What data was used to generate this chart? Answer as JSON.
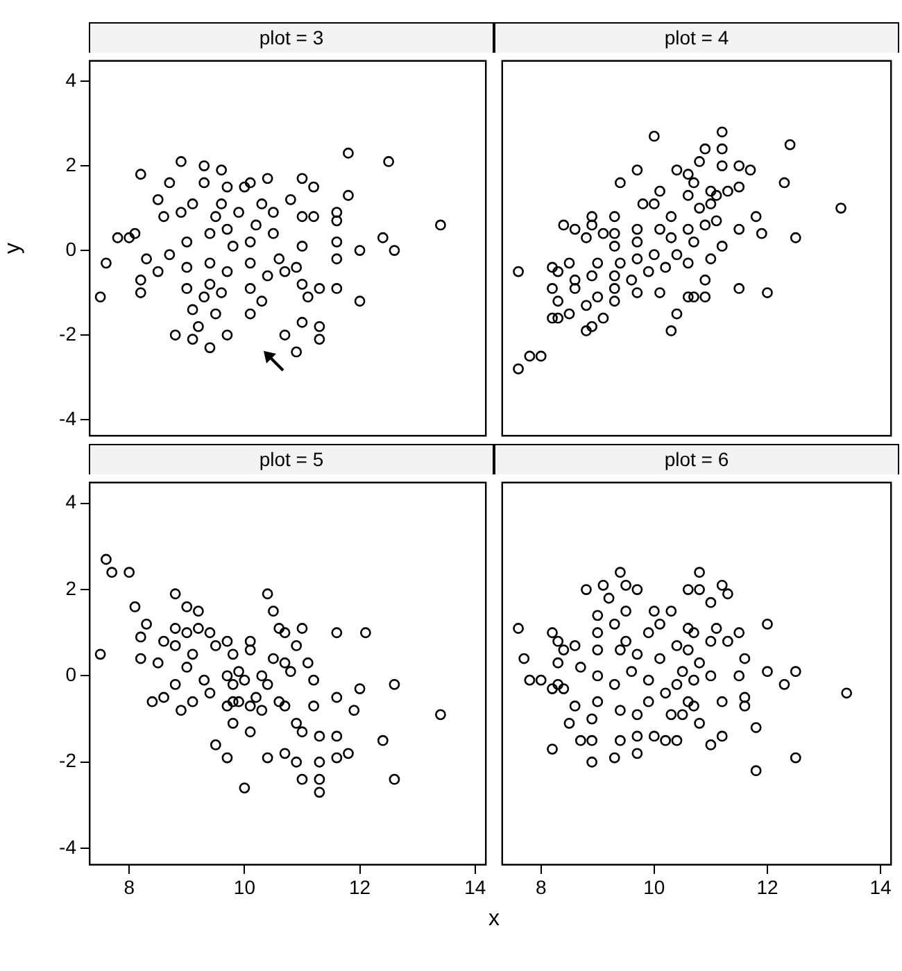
{
  "chart_data": [
    {
      "type": "scatter",
      "title": "plot = 3",
      "ylabel": "y",
      "color": "#000000",
      "marker": "circle",
      "xlim": [
        7.3,
        14.2
      ],
      "ylim": [
        -4.4,
        4.5
      ],
      "xticks": [
        8,
        10,
        12,
        14
      ],
      "yticks": [
        -4,
        -2,
        0,
        2,
        4
      ],
      "tick_labels": "y",
      "x": [
        7.5,
        7.6,
        7.8,
        8.0,
        8.1,
        8.2,
        8.2,
        8.3,
        8.2,
        8.5,
        8.6,
        8.7,
        8.9,
        8.8,
        9.1,
        9.2,
        9.4,
        9.7,
        9.3,
        9.6,
        9.3,
        9.7,
        8.5,
        8.7,
        9.0,
        9.0,
        9.0,
        8.9,
        9.1,
        9.1,
        9.3,
        9.5,
        9.4,
        9.4,
        9.4,
        9.5,
        9.6,
        9.6,
        9.7,
        9.8,
        9.7,
        9.9,
        10.0,
        10.1,
        10.3,
        10.1,
        10.1,
        10.1,
        10.2,
        10.3,
        10.4,
        10.1,
        10.4,
        10.6,
        10.5,
        10.5,
        10.7,
        10.9,
        11.0,
        11.3,
        11.3,
        11.1,
        11.0,
        11.3,
        10.7,
        10.9,
        11.0,
        11.2,
        11.0,
        10.8,
        11.0,
        11.2,
        11.6,
        11.6,
        11.6,
        11.6,
        11.6,
        11.8,
        11.8,
        12.0,
        12.0,
        12.4,
        12.6,
        12.5,
        13.4
      ],
      "values": [
        -1.1,
        -0.3,
        0.3,
        0.3,
        0.4,
        -1.0,
        -0.7,
        -0.2,
        1.8,
        1.2,
        0.8,
        1.6,
        2.1,
        -2.0,
        -2.1,
        -1.8,
        -2.3,
        -2.0,
        2.0,
        1.9,
        1.6,
        1.5,
        -0.5,
        -0.1,
        -0.9,
        -0.4,
        0.2,
        0.9,
        1.1,
        -1.4,
        -1.1,
        -1.5,
        -0.8,
        -0.3,
        0.4,
        0.8,
        1.1,
        -1.0,
        -0.5,
        0.1,
        0.5,
        0.9,
        1.5,
        -1.5,
        -1.2,
        -0.9,
        -0.3,
        0.2,
        0.6,
        1.1,
        1.7,
        1.6,
        -0.6,
        -0.2,
        0.4,
        0.9,
        -2.0,
        -2.4,
        -1.7,
        -2.1,
        -1.8,
        -1.1,
        -0.8,
        -0.9,
        -0.5,
        -0.4,
        0.1,
        0.8,
        0.8,
        1.2,
        1.7,
        1.5,
        -0.9,
        -0.2,
        0.2,
        0.7,
        0.9,
        1.3,
        2.3,
        -1.2,
        0.0,
        0.3,
        0.0,
        2.1,
        0.6
      ]
    },
    {
      "type": "scatter",
      "title": "plot = 4",
      "color": "#000000",
      "marker": "circle",
      "xlim": [
        7.3,
        14.2
      ],
      "ylim": [
        -4.4,
        4.5
      ],
      "xticks": [
        8,
        10,
        12,
        14
      ],
      "yticks": [
        -4,
        -2,
        0,
        2,
        4
      ],
      "tick_labels": false,
      "x": [
        7.6,
        7.8,
        8.0,
        7.6,
        8.2,
        8.3,
        8.3,
        8.2,
        8.2,
        8.3,
        8.5,
        8.5,
        8.6,
        8.6,
        8.4,
        8.6,
        8.8,
        8.9,
        9.1,
        8.8,
        9.0,
        8.9,
        9.0,
        8.8,
        8.9,
        8.9,
        9.1,
        9.3,
        9.3,
        9.3,
        9.4,
        9.3,
        9.3,
        9.3,
        9.4,
        9.7,
        10.0,
        9.7,
        9.6,
        9.7,
        9.7,
        9.7,
        9.8,
        10.1,
        9.9,
        10.0,
        10.1,
        10.0,
        10.1,
        10.3,
        10.4,
        10.6,
        10.2,
        10.4,
        10.3,
        10.3,
        10.4,
        10.7,
        10.9,
        10.9,
        10.6,
        11.0,
        10.7,
        10.6,
        10.9,
        10.6,
        10.7,
        10.6,
        10.8,
        10.9,
        10.8,
        11.0,
        11.0,
        11.2,
        11.1,
        11.1,
        11.3,
        11.2,
        11.2,
        11.2,
        11.5,
        11.5,
        11.5,
        11.5,
        11.7,
        11.8,
        12.0,
        11.9,
        12.3,
        12.4,
        12.5,
        13.3
      ],
      "values": [
        -2.8,
        -2.5,
        -2.5,
        -0.5,
        -1.6,
        -1.6,
        -1.2,
        -0.9,
        -0.4,
        -0.5,
        -0.3,
        -1.5,
        -0.9,
        -0.7,
        0.6,
        0.5,
        -1.9,
        -1.8,
        -1.6,
        -1.3,
        -1.1,
        -0.6,
        -0.3,
        0.3,
        0.6,
        0.8,
        0.4,
        -1.2,
        -0.9,
        -0.6,
        -0.3,
        0.1,
        0.4,
        0.8,
        1.6,
        1.9,
        2.7,
        -1.0,
        -0.7,
        -0.2,
        0.2,
        0.5,
        1.1,
        -1.0,
        -0.5,
        -0.1,
        0.5,
        1.1,
        1.4,
        -1.9,
        -1.5,
        -1.1,
        -0.4,
        -0.1,
        0.3,
        0.8,
        1.9,
        -1.1,
        -1.1,
        -0.7,
        -0.3,
        -0.2,
        0.2,
        0.5,
        0.6,
        1.3,
        1.6,
        1.8,
        2.1,
        2.4,
        1.0,
        1.1,
        1.4,
        0.1,
        0.7,
        1.3,
        1.4,
        2.0,
        2.4,
        2.8,
        -0.9,
        0.5,
        1.5,
        2.0,
        1.9,
        0.8,
        -1.0,
        0.4,
        1.6,
        2.5,
        0.3,
        1.0
      ]
    },
    {
      "type": "scatter",
      "title": "plot = 5",
      "xlabel": "x",
      "color": "#000000",
      "marker": "circle",
      "xlim": [
        7.3,
        14.2
      ],
      "ylim": [
        -4.4,
        4.5
      ],
      "xticks": [
        8,
        10,
        12,
        14
      ],
      "yticks": [
        -4,
        -2,
        0,
        2,
        4
      ],
      "x": [
        7.5,
        7.6,
        7.7,
        8.0,
        8.2,
        8.2,
        8.1,
        8.4,
        8.5,
        8.3,
        8.6,
        8.6,
        8.9,
        8.8,
        8.8,
        8.8,
        9.0,
        9.2,
        9.5,
        9.7,
        10.0,
        9.8,
        10.1,
        10.4,
        10.4,
        10.5,
        10.6,
        10.7,
        10.7,
        10.9,
        11.0,
        11.3,
        11.3,
        11.3,
        11.3,
        11.6,
        11.8,
        11.6,
        11.6,
        11.9,
        12.0,
        11.6,
        12.1,
        12.4,
        12.6,
        12.6,
        13.4,
        10.9,
        11.0,
        11.2,
        11.1,
        11.2,
        11.0,
        10.9,
        10.7,
        10.8,
        10.7,
        10.5,
        10.4,
        10.6,
        10.3,
        10.2,
        10.0,
        10.1,
        10.1,
        10.1,
        9.8,
        9.7,
        9.5,
        9.4,
        9.2,
        9.1,
        9.3,
        9.4,
        9.0,
        9.1,
        8.8,
        9.7,
        9.8,
        9.8,
        9.7,
        10.3,
        9.9,
        9.9,
        9.0
      ],
      "values": [
        0.5,
        2.7,
        2.4,
        2.4,
        0.4,
        0.9,
        1.6,
        -0.6,
        0.3,
        1.2,
        0.8,
        -0.5,
        -0.8,
        -0.2,
        1.1,
        1.9,
        1.6,
        1.5,
        -1.6,
        -1.9,
        -2.6,
        -1.1,
        -1.3,
        -1.9,
        1.9,
        1.5,
        1.1,
        1.0,
        -1.8,
        -2.0,
        -2.4,
        -2.7,
        -2.4,
        -2.0,
        -1.4,
        -1.9,
        -1.8,
        -1.4,
        -0.5,
        -0.8,
        -0.3,
        1.0,
        1.0,
        -1.5,
        -2.4,
        -0.2,
        -0.9,
        0.7,
        1.1,
        -0.1,
        0.3,
        -0.7,
        -1.3,
        -1.1,
        -0.7,
        0.1,
        0.3,
        0.4,
        -0.2,
        -0.6,
        -0.8,
        -0.5,
        -0.1,
        0.6,
        0.8,
        -0.7,
        -0.6,
        0.0,
        0.7,
        1.0,
        1.1,
        0.5,
        -0.1,
        -0.4,
        0.2,
        -0.6,
        0.7,
        0.8,
        0.5,
        -0.2,
        -0.7,
        0.0,
        0.1,
        -0.6,
        1.0
      ]
    },
    {
      "type": "scatter",
      "title": "plot = 6",
      "color": "#000000",
      "marker": "circle",
      "xlim": [
        7.3,
        14.2
      ],
      "ylim": [
        -4.4,
        4.5
      ],
      "xticks": [
        8,
        10,
        12,
        14
      ],
      "yticks": [
        -4,
        -2,
        0,
        2,
        4
      ],
      "tick_labels": "x",
      "x": [
        7.6,
        7.7,
        7.8,
        8.0,
        8.2,
        8.2,
        8.3,
        8.4,
        8.3,
        8.3,
        8.2,
        8.4,
        8.6,
        8.5,
        8.7,
        8.6,
        8.7,
        8.9,
        8.9,
        8.9,
        9.0,
        9.0,
        9.0,
        9.0,
        9.0,
        8.8,
        9.1,
        9.2,
        9.3,
        9.4,
        9.7,
        9.7,
        9.4,
        9.3,
        9.6,
        9.4,
        9.5,
        9.3,
        9.5,
        9.5,
        9.4,
        9.7,
        9.7,
        9.9,
        9.9,
        9.7,
        9.9,
        10.2,
        10.0,
        10.4,
        10.3,
        10.2,
        10.1,
        10.1,
        10.0,
        10.3,
        10.5,
        10.6,
        10.4,
        10.5,
        10.4,
        10.6,
        10.7,
        10.8,
        10.7,
        10.7,
        10.8,
        10.6,
        10.6,
        10.8,
        10.8,
        11.0,
        11.0,
        11.2,
        11.2,
        11.0,
        11.0,
        11.1,
        11.3,
        11.3,
        11.2,
        11.6,
        11.6,
        11.5,
        11.6,
        11.5,
        11.8,
        11.8,
        12.0,
        12.0,
        12.5,
        12.3,
        12.5,
        13.4
      ],
      "values": [
        1.1,
        0.4,
        -0.1,
        -0.1,
        -1.7,
        -0.3,
        -0.2,
        -0.3,
        0.3,
        0.8,
        1.0,
        0.6,
        0.7,
        -1.1,
        -1.5,
        -0.7,
        0.2,
        -2.0,
        -1.5,
        -1.0,
        -0.6,
        0.0,
        0.6,
        1.0,
        1.4,
        2.0,
        2.1,
        1.8,
        -1.9,
        -1.5,
        -1.8,
        -1.4,
        -0.8,
        -0.2,
        0.1,
        0.6,
        0.8,
        1.2,
        1.5,
        2.1,
        2.4,
        2.0,
        -0.9,
        -0.6,
        -0.1,
        0.5,
        1.0,
        -1.5,
        -1.4,
        -1.5,
        -0.9,
        -0.4,
        0.4,
        1.2,
        1.5,
        1.5,
        -0.9,
        -0.6,
        -0.2,
        0.1,
        0.7,
        1.1,
        1.0,
        -1.1,
        -0.7,
        -0.1,
        0.3,
        0.6,
        2.0,
        2.4,
        2.0,
        1.7,
        -1.6,
        -1.4,
        -0.6,
        0.0,
        0.8,
        1.1,
        0.8,
        1.9,
        2.1,
        -0.7,
        -0.5,
        0.0,
        0.4,
        1.0,
        -2.2,
        -1.2,
        0.1,
        1.2,
        -1.9,
        -0.2,
        0.1,
        -0.4
      ]
    }
  ]
}
